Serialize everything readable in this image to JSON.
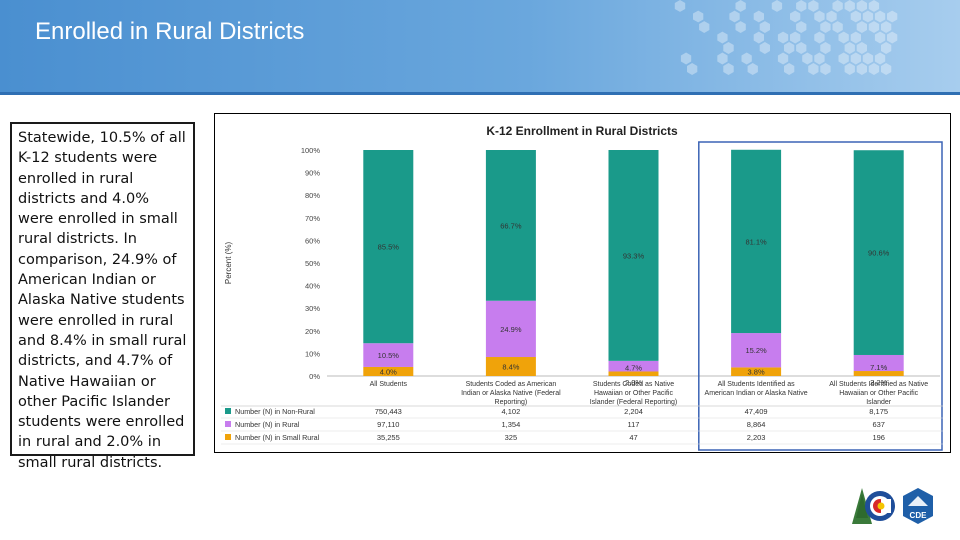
{
  "slide": {
    "title": "Enrolled in Rural Districts",
    "body_text": "Statewide, 10.5% of all K-12 students were enrolled in rural districts and 4.0% were enrolled in small rural districts. In comparison, 24.9% of American Indian or Alaska Native students were enrolled in rural and 8.4% in small rural districts, and 4.7% of Native Hawaiian or other Pacific Islander students were enrolled in rural and 2.0% in small rural districts."
  },
  "logos": {
    "colorado_logo": "colorado-logo",
    "cde_label": "CDE"
  },
  "chart_data": {
    "type": "bar",
    "stacked": true,
    "title": "K-12 Enrollment in Rural Districts",
    "ylabel": "Percent (%)",
    "xlabel": "",
    "ylim": [
      0,
      100
    ],
    "yticks": [
      "0%",
      "10%",
      "20%",
      "30%",
      "40%",
      "50%",
      "60%",
      "70%",
      "80%",
      "90%",
      "100%"
    ],
    "grid": false,
    "legend": "table-below",
    "categories": [
      [
        "All Students"
      ],
      [
        "Students Coded as American",
        "Indian or Alaska Native (Federal",
        "Reporting)"
      ],
      [
        "Students Coded as Native",
        "Hawaiian or Other Pacific",
        "Islander (Federal Reporting)"
      ],
      [
        "All Students Identified as",
        "American Indian or Alaska Native"
      ],
      [
        "All Students Identified as Native",
        "Hawaiian or Other Pacific",
        "Islander"
      ]
    ],
    "series": [
      {
        "name": "Number (N) in Small Rural",
        "color": "#f0a30a",
        "values": [
          4.0,
          8.4,
          2.0,
          3.8,
          2.2
        ],
        "labels": [
          "4.0%",
          "8.4%",
          "2.0%",
          "3.8%",
          "2.2%"
        ],
        "counts": [
          "35,255",
          "325",
          "47",
          "2,203",
          "196"
        ]
      },
      {
        "name": "Number (N) in Rural",
        "color": "#c77dee",
        "values": [
          10.5,
          24.9,
          4.7,
          15.2,
          7.1
        ],
        "labels": [
          "10.5%",
          "24.9%",
          "4.7%",
          "15.2%",
          "7.1%"
        ],
        "counts": [
          "97,110",
          "1,354",
          "117",
          "8,864",
          "637"
        ]
      },
      {
        "name": "Number (N) in Non-Rural",
        "color": "#1a9a8a",
        "values": [
          85.5,
          66.7,
          93.3,
          81.1,
          90.6
        ],
        "labels": [
          "85.5%",
          "66.7%",
          "93.3%",
          "81.1%",
          "90.6%"
        ],
        "counts": [
          "750,443",
          "4,102",
          "2,204",
          "47,409",
          "8,175"
        ]
      }
    ]
  }
}
